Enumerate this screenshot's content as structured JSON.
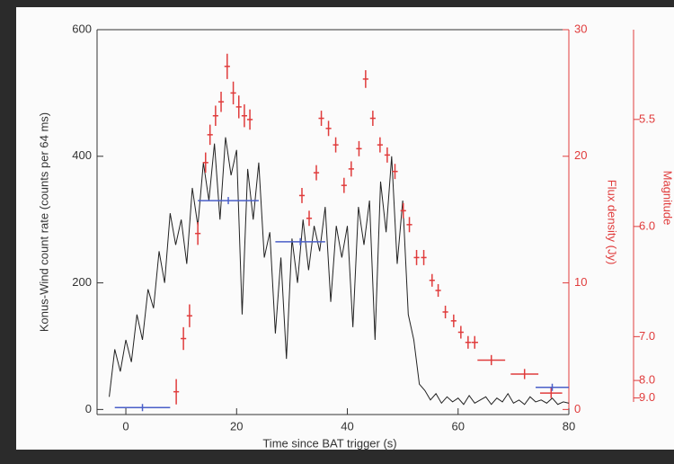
{
  "chart_data": {
    "type": "line",
    "xlabel": "Time since BAT trigger (s)",
    "ylabel": "Konus-Wind count rate (counts per 64 ms)",
    "y2label": "Flux density (Jy)",
    "y3label": "Magnitude",
    "xlim": [
      -5.2,
      80
    ],
    "xticks": [
      0,
      20,
      40,
      60,
      80
    ],
    "ylim": [
      -8,
      600
    ],
    "yticks": [
      0,
      200,
      400,
      600
    ],
    "y2lim": [
      -0.4,
      30
    ],
    "y2ticks": [
      0,
      10,
      20,
      30
    ],
    "y3scale": "magnitude",
    "y3ticks": [
      5.5,
      {
        "value": 6,
        "label": "6.0"
      },
      {
        "value": 7,
        "label": "7.0"
      },
      {
        "value": 8,
        "label": "8.0"
      },
      {
        "value": 9,
        "label": "9.0"
      }
    ],
    "axis_color": "#333333",
    "y2_color": "#e03c3c",
    "series": [
      {
        "type": "line",
        "color": "#222222",
        "x": [
          -3,
          -2,
          -1,
          0,
          1,
          2,
          3,
          4,
          5,
          6,
          7,
          8,
          9,
          10,
          11,
          12,
          13,
          14,
          15,
          16,
          17,
          18,
          19,
          20,
          21,
          22,
          23,
          24,
          25,
          26,
          27,
          28,
          29,
          30,
          31,
          32,
          33,
          34,
          35,
          36,
          37,
          38,
          39,
          40,
          41,
          42,
          43,
          44,
          45,
          46,
          47,
          48,
          49,
          50,
          51,
          52,
          53,
          54,
          55,
          56,
          57,
          58,
          59,
          60,
          61,
          62,
          63,
          64,
          65,
          66,
          67,
          68,
          69,
          70,
          71,
          72,
          73,
          74,
          75,
          76,
          77,
          78,
          79,
          80
        ],
        "values": [
          20,
          95,
          60,
          110,
          75,
          150,
          110,
          190,
          160,
          250,
          200,
          310,
          260,
          300,
          230,
          350,
          290,
          390,
          330,
          420,
          300,
          430,
          370,
          410,
          150,
          380,
          300,
          390,
          240,
          280,
          120,
          240,
          80,
          270,
          200,
          300,
          220,
          290,
          250,
          320,
          170,
          290,
          240,
          290,
          130,
          320,
          260,
          330,
          110,
          360,
          280,
          400,
          230,
          330,
          150,
          110,
          40,
          30,
          15,
          25,
          10,
          20,
          12,
          18,
          8,
          22,
          10,
          15,
          20,
          8,
          18,
          12,
          25,
          10,
          15,
          8,
          20,
          12,
          15,
          10,
          18,
          8,
          12,
          10
        ]
      },
      {
        "type": "errorbar",
        "axis": "y2",
        "color": "#e03c3c",
        "x": [
          9.1,
          10.4,
          11.5,
          13.0,
          14.4,
          15.2,
          16.2,
          17.2,
          18.3,
          19.4,
          20.4,
          21.4,
          22.4,
          31.8,
          33.1,
          34.4,
          35.3,
          36.6,
          37.9,
          39.4,
          40.7,
          42.1,
          43.3,
          44.6,
          45.9,
          47.2,
          48.6,
          50.1,
          51.2,
          52.5,
          53.8,
          55.3,
          56.4,
          57.7,
          59.2,
          60.5,
          61.8,
          63.0,
          66.0,
          72.0,
          76.8
        ],
        "values": [
          1.4,
          5.6,
          7.4,
          13.9,
          19.5,
          21.7,
          23.2,
          24.3,
          27.1,
          25.0,
          23.9,
          23.2,
          22.9,
          16.9,
          15.1,
          18.7,
          23.0,
          22.2,
          20.9,
          17.7,
          19.0,
          20.6,
          26.1,
          23.0,
          20.9,
          20.1,
          18.8,
          15.7,
          14.6,
          12.0,
          12.0,
          10.2,
          9.4,
          7.7,
          7.0,
          6.1,
          5.3,
          5.3,
          3.9,
          2.8,
          1.3
        ],
        "xerr": [
          0.5,
          0.5,
          0.5,
          0.5,
          0.5,
          0.5,
          0.5,
          0.5,
          0.5,
          0.5,
          0.5,
          0.5,
          0.5,
          0.5,
          0.5,
          0.5,
          0.5,
          0.5,
          0.5,
          0.5,
          0.5,
          0.5,
          0.5,
          0.5,
          0.5,
          0.5,
          0.5,
          0.5,
          0.5,
          0.5,
          0.5,
          0.5,
          0.5,
          0.5,
          0.5,
          0.5,
          0.5,
          0.6,
          2.5,
          2.5,
          2.0
        ],
        "yerr": [
          1.0,
          0.9,
          0.9,
          0.9,
          0.8,
          0.8,
          0.8,
          0.8,
          1.0,
          0.9,
          0.9,
          0.9,
          0.8,
          0.6,
          0.6,
          0.6,
          0.6,
          0.6,
          0.6,
          0.6,
          0.6,
          0.6,
          0.7,
          0.6,
          0.6,
          0.6,
          0.6,
          0.6,
          0.6,
          0.6,
          0.6,
          0.5,
          0.5,
          0.5,
          0.5,
          0.5,
          0.5,
          0.5,
          0.4,
          0.4,
          0.4
        ]
      },
      {
        "type": "errorbar",
        "color": "#4a5fc8",
        "x": [
          3,
          18.5,
          31.5,
          77
        ],
        "values": [
          3,
          330,
          265,
          35
        ],
        "xerr": [
          5,
          5.5,
          4.5,
          3
        ]
      }
    ]
  }
}
